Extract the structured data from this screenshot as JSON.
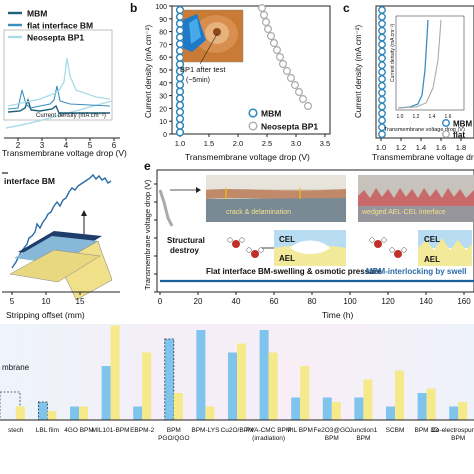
{
  "panels": {
    "a": {
      "legend": [
        "MBM",
        "flat interface BM",
        "Neosepta BP1"
      ],
      "colors": [
        "#1f5f7a",
        "#3a8fc0",
        "#a8dce8"
      ],
      "inset_xlabel": "Current density (mA cm⁻²)",
      "xlabel": "Transmembrane voltage drop (V)",
      "xticks": [
        "2",
        "3",
        "4",
        "5",
        "6"
      ]
    },
    "b": {
      "letter": "b",
      "ylabel": "Current density (mA cm⁻²)",
      "yticks": [
        "100",
        "90",
        "80",
        "70",
        "60",
        "50",
        "40",
        "30",
        "20",
        "10",
        "0"
      ],
      "xlabel": "Transmembrane voltage drop (V)",
      "xticks": [
        "1.0",
        "1.5",
        "2.0",
        "2.5",
        "3.0",
        "3.5"
      ],
      "photo_caption": "BP1 after test",
      "photo_caption2": "(~5min)",
      "legend": [
        "MBM",
        "Neosepta BP1"
      ]
    },
    "c": {
      "letter": "c",
      "ylabel": "Current density (mA cm⁻²)",
      "xlabel": "Transmembrane voltage drop",
      "xticks": [
        "1.0",
        "1.2",
        "1.4",
        "1.6",
        "1.8",
        "2.0"
      ],
      "inset_ylabel": "Current density (mA cm⁻²)",
      "inset_xlabel": "Transmembrane voltage drop (V)",
      "inset_xticks": [
        "1.0",
        "1.2",
        "1.4",
        "1.6"
      ],
      "legend": [
        "MBM",
        "flat"
      ]
    },
    "d": {
      "legend": "interface BM",
      "xlabel": "Stripping offset (mm)",
      "xticks": [
        "5",
        "10",
        "15"
      ]
    },
    "e": {
      "letter": "e",
      "ylabel": "Transmembrane voltage drop (V)",
      "yticks": [
        "6",
        "5",
        "4",
        "3",
        "2",
        "1",
        "0"
      ],
      "xlabel": "Time (h)",
      "xticks": [
        "0",
        "20",
        "40",
        "60",
        "80",
        "100",
        "120",
        "140",
        "160"
      ],
      "structural": "Structural",
      "destroy": "destroy",
      "crack": "crack & delamination",
      "wedged": "wedged AEL-CEL interface",
      "cel": "CEL",
      "ael": "AEL",
      "flat_text": "Flat interface BM-swelling & osmotic pressure",
      "mbm_text": "MBM-interlocking by swell"
    },
    "f": {
      "left_label_1": "mbrane",
      "left_label_2": "stech",
      "chart_data": {
        "type": "bar",
        "categories": [
          "stech",
          "LBL film",
          "4GO BPM",
          "MIL101-BPM",
          "EBPM-2",
          "BPM PGO/QGO",
          "BPM-LYS",
          "Cu2O/BPM",
          "PVA-CMC BPM (irradiation)",
          "PIL BPM",
          "Fe2O3@GO BPM",
          "Junction1 BPM",
          "SCBM",
          "BPM 3D",
          "Co-electrospun 3D BPM"
        ],
        "series": [
          {
            "color": "#7fc4ec",
            "values": [
              null,
              20,
              15,
              60,
              15,
              90,
              100,
              75,
              100,
              25,
              25,
              25,
              15,
              30,
              15
            ]
          },
          {
            "color": "#f5e98a",
            "values": [
              15,
              10,
              15,
              105,
              75,
              30,
              15,
              85,
              75,
              60,
              20,
              45,
              55,
              35,
              20
            ]
          }
        ],
        "dashed": [
          "LBL film blue",
          "BPM PGO/QGO blue",
          "stech outline"
        ]
      }
    }
  }
}
